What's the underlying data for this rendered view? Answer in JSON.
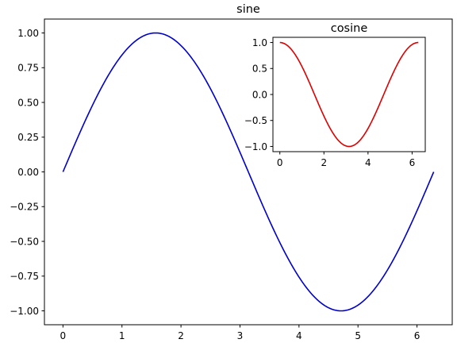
{
  "chart_data": [
    {
      "type": "line",
      "title": "sine",
      "xlabel": "",
      "ylabel": "",
      "xlim": [
        -0.3142,
        6.5973
      ],
      "ylim": [
        -1.1,
        1.1
      ],
      "xticks": [
        0,
        1,
        2,
        3,
        4,
        5,
        6
      ],
      "xtick_labels": [
        "0",
        "1",
        "2",
        "3",
        "4",
        "5",
        "6"
      ],
      "yticks": [
        -1.0,
        -0.75,
        -0.5,
        -0.25,
        0.0,
        0.25,
        0.5,
        0.75,
        1.0
      ],
      "ytick_labels": [
        "−1.00",
        "−0.75",
        "−0.50",
        "−0.25",
        "0.00",
        "0.25",
        "0.50",
        "0.75",
        "1.00"
      ],
      "grid": false,
      "series": [
        {
          "function": "sin",
          "x_start": 0,
          "x_end": 6.2832,
          "color": "#0000cc",
          "x": [
            0,
            0.25,
            0.5,
            0.75,
            1.0,
            1.25,
            1.5708,
            1.75,
            2.0,
            2.25,
            2.5,
            2.75,
            3.0,
            3.1416,
            3.25,
            3.5,
            3.75,
            4.0,
            4.25,
            4.5,
            4.7124,
            5.0,
            5.25,
            5.5,
            5.75,
            6.0,
            6.2832
          ],
          "y": [
            0,
            0.247,
            0.479,
            0.682,
            0.841,
            0.949,
            1.0,
            0.984,
            0.909,
            0.778,
            0.598,
            0.382,
            0.141,
            0.0,
            -0.108,
            -0.351,
            -0.572,
            -0.757,
            -0.895,
            -0.978,
            -1.0,
            -0.959,
            -0.859,
            -0.706,
            -0.508,
            -0.279,
            0.0
          ]
        }
      ]
    },
    {
      "type": "line",
      "title": "cosine",
      "xlabel": "",
      "ylabel": "",
      "xlim": [
        -0.3142,
        6.5973
      ],
      "ylim": [
        -1.1,
        1.1
      ],
      "xticks": [
        0,
        2,
        4,
        6
      ],
      "xtick_labels": [
        "0",
        "2",
        "4",
        "6"
      ],
      "yticks": [
        -1.0,
        -0.5,
        0.0,
        0.5,
        1.0
      ],
      "ytick_labels": [
        "−1.0",
        "−0.5",
        "0.0",
        "0.5",
        "1.0"
      ],
      "grid": false,
      "series": [
        {
          "function": "cos",
          "x_start": 0,
          "x_end": 6.2832,
          "color": "#dd0000",
          "x": [
            0,
            0.5,
            1.0,
            1.5,
            2.0,
            2.5,
            3.0,
            3.1416,
            3.5,
            4.0,
            4.5,
            5.0,
            5.5,
            6.0,
            6.2832
          ],
          "y": [
            1.0,
            0.878,
            0.54,
            0.071,
            -0.416,
            -0.801,
            -0.99,
            -1.0,
            -0.936,
            -0.654,
            -0.211,
            0.284,
            0.709,
            0.96,
            1.0
          ]
        }
      ]
    }
  ]
}
